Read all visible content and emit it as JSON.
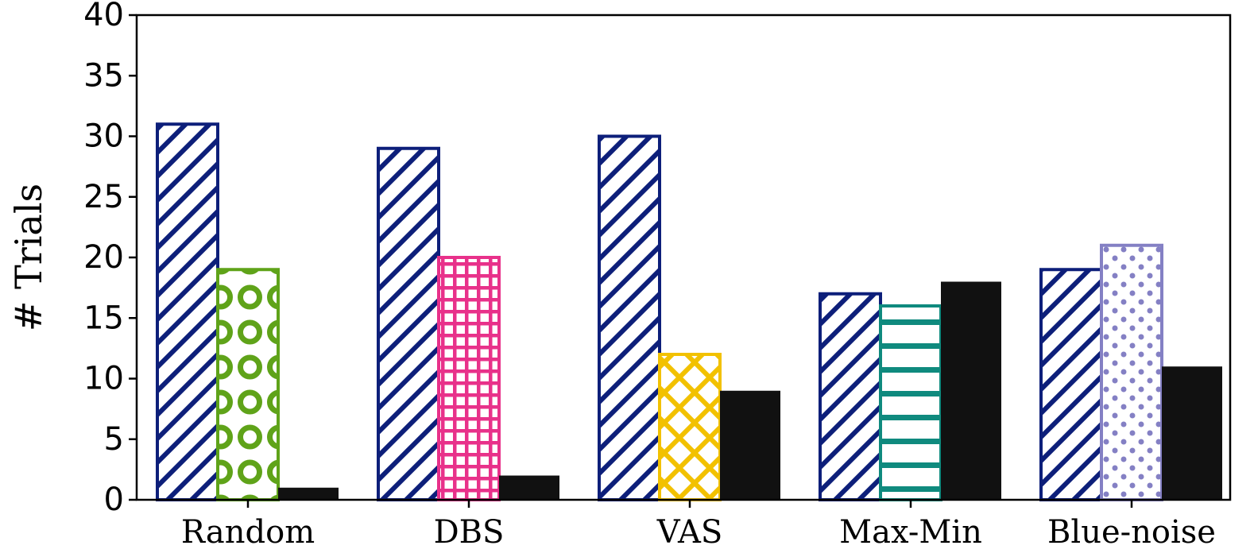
{
  "chart_data": {
    "type": "bar",
    "categories": [
      "Random",
      "DBS",
      "VAS",
      "Max-Min",
      "Blue-noise"
    ],
    "ylabel": "# Trials",
    "xlabel": "",
    "ylim": [
      0,
      40
    ],
    "yticks": [
      "0",
      "5",
      "10",
      "15",
      "20",
      "25",
      "30",
      "35",
      "40"
    ],
    "grid": false,
    "legend": "none",
    "groups": [
      {
        "category": "Random",
        "bars": [
          {
            "value": 31,
            "pattern": "diagonal",
            "color": "#0d1f7a"
          },
          {
            "value": 19,
            "pattern": "circles",
            "color": "#5fa319"
          },
          {
            "value": 1,
            "pattern": "solid",
            "color": "#111111"
          }
        ]
      },
      {
        "category": "DBS",
        "bars": [
          {
            "value": 29,
            "pattern": "diagonal",
            "color": "#0d1f7a"
          },
          {
            "value": 20,
            "pattern": "grid",
            "color": "#e8318a"
          },
          {
            "value": 2,
            "pattern": "solid",
            "color": "#111111"
          }
        ]
      },
      {
        "category": "VAS",
        "bars": [
          {
            "value": 30,
            "pattern": "diagonal",
            "color": "#0d1f7a"
          },
          {
            "value": 12,
            "pattern": "crosshatch",
            "color": "#f2c100"
          },
          {
            "value": 9,
            "pattern": "solid",
            "color": "#111111"
          }
        ]
      },
      {
        "category": "Max-Min",
        "bars": [
          {
            "value": 17,
            "pattern": "diagonal",
            "color": "#0d1f7a"
          },
          {
            "value": 16,
            "pattern": "horizontal",
            "color": "#0f8a7e"
          },
          {
            "value": 18,
            "pattern": "solid",
            "color": "#111111"
          }
        ]
      },
      {
        "category": "Blue-noise",
        "bars": [
          {
            "value": 19,
            "pattern": "diagonal",
            "color": "#0d1f7a"
          },
          {
            "value": 21,
            "pattern": "dots",
            "color": "#8480c4"
          },
          {
            "value": 11,
            "pattern": "solid",
            "color": "#111111"
          }
        ]
      }
    ]
  }
}
